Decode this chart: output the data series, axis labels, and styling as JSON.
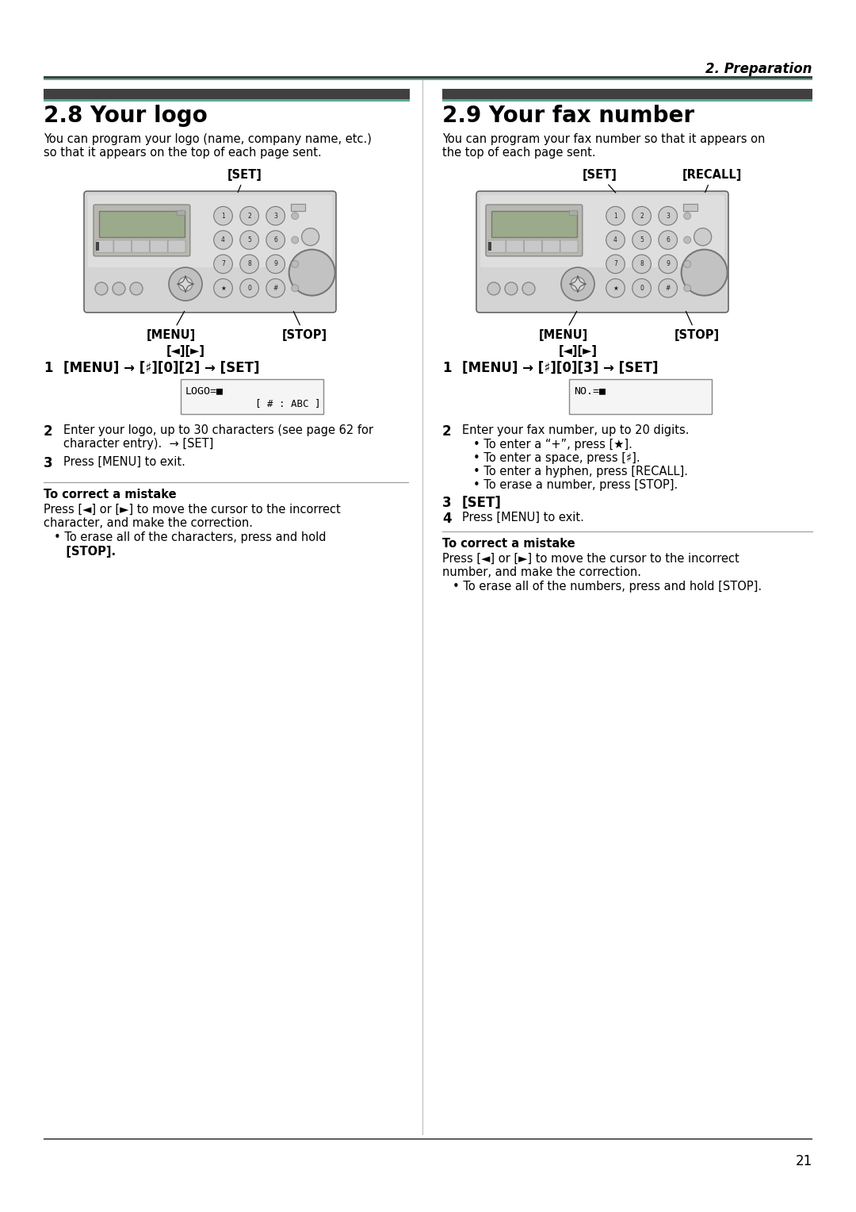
{
  "page_title": "2. Preparation",
  "page_number": "21",
  "section1_title": "2.8 Your logo",
  "section1_desc1": "You can program your logo (name, company name, etc.)",
  "section1_desc2": "so that it appears on the top of each page sent.",
  "section2_title": "2.9 Your fax number",
  "section2_desc1": "You can program your fax number so that it appears on",
  "section2_desc2": "the top of each page sent.",
  "bg_color": "#ffffff",
  "dark_bar_color": "#404040",
  "teal_bar_color": "#5aaa96",
  "step1_left": "[MENU] → [♯][0][2] → [SET]",
  "step1_right": "[MENU] → [♯][0][3] → [SET]",
  "step2_left_a": "Enter your logo, up to 30 characters (see page 62 for",
  "step2_left_b": "character entry).  → [SET]",
  "step3_left": "Press [MENU] to exit.",
  "step2_right_0": "Enter your fax number, up to 20 digits.",
  "step2_right_1": "• To enter a “+”, press [★].",
  "step2_right_2": "• To enter a space, press [♯].",
  "step2_right_3": "• To enter a hyphen, press [RECALL].",
  "step2_right_4": "• To erase a number, press [STOP].",
  "step3_right": "[SET]",
  "step4_right": "Press [MENU] to exit.",
  "correct_title": "To correct a mistake",
  "correct_left_1": "Press [◄] or [►] to move the cursor to the incorrect",
  "correct_left_2": "character, and make the correction.",
  "correct_left_3": "• To erase all of the characters, press and hold",
  "correct_left_4": "   [STOP].",
  "correct_right_1": "Press [◄] or [►] to move the cursor to the incorrect",
  "correct_right_2": "number, and make the correction.",
  "correct_right_3": "• To erase all of the numbers, press and hold [STOP]."
}
